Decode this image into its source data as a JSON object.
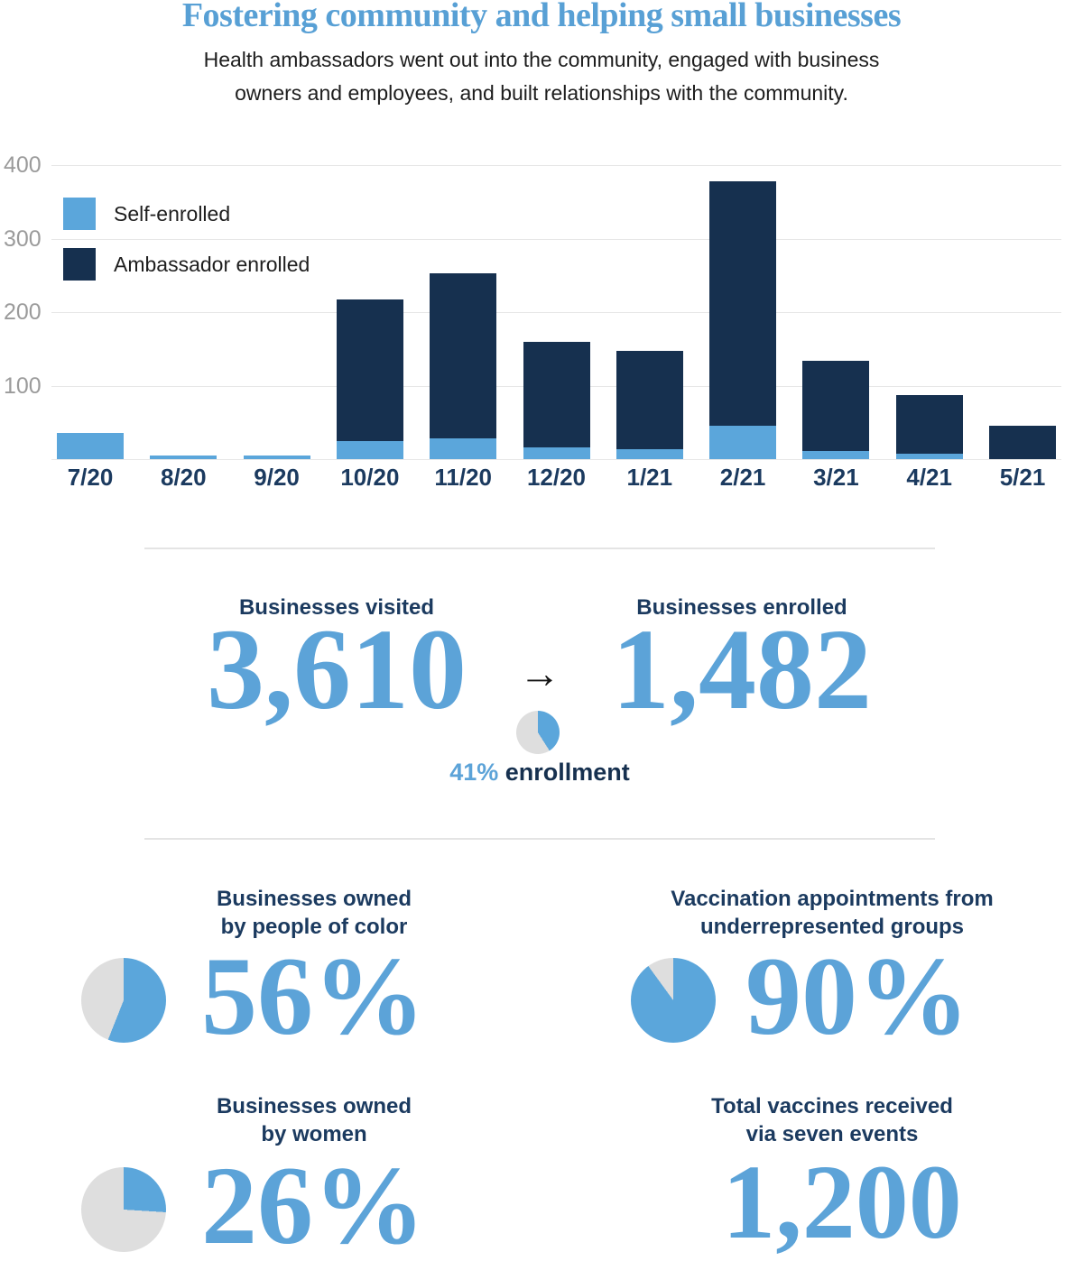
{
  "title": "Fostering community and helping small businesses",
  "subtitle_line1": "Health ambassadors went out into the community, engaged with business",
  "subtitle_line2": "owners and employees, and built relationships with the community.",
  "colors": {
    "light_blue": "#5BA6DB",
    "navy": "#16304F",
    "heading_navy": "#1B3A5F",
    "number_blue": "#5CA3D8",
    "title_blue": "#58A0D5",
    "pie_grey": "#DEDEDE",
    "grid": "#E7E7E7",
    "tick_grey": "#9B9B9B",
    "text_dark": "#1D1D1D"
  },
  "chart_data": {
    "type": "bar",
    "stacked": true,
    "categories": [
      "7/20",
      "8/20",
      "9/20",
      "10/20",
      "11/20",
      "12/20",
      "1/21",
      "2/21",
      "3/21",
      "4/21",
      "5/21"
    ],
    "series": [
      {
        "name": "Self-enrolled",
        "color_key": "light_blue",
        "values": [
          35,
          5,
          5,
          25,
          28,
          16,
          13,
          45,
          11,
          7,
          0
        ]
      },
      {
        "name": "Ambassador enrolled",
        "color_key": "navy",
        "values": [
          0,
          0,
          0,
          193,
          225,
          144,
          134,
          333,
          123,
          80,
          46
        ]
      }
    ],
    "totals": [
      35,
      5,
      5,
      218,
      253,
      160,
      147,
      378,
      134,
      87,
      46
    ],
    "ylim": [
      0,
      400
    ],
    "yticks": [
      100,
      200,
      300,
      400
    ],
    "grid": true,
    "legend_position": "top-left"
  },
  "stats": {
    "visited": {
      "label": "Businesses visited",
      "value": "3,610"
    },
    "enrolled": {
      "label": "Businesses enrolled",
      "value": "1,482"
    },
    "arrow": "→",
    "enrollment_rate": {
      "percent": "41%",
      "label": "enrollment",
      "pie_percent": 41
    }
  },
  "metrics": [
    {
      "label_line1": "Businesses owned",
      "label_line2": "by people of color",
      "value": "56%",
      "pie_percent": 56
    },
    {
      "label_line1": "Vaccination appointments from",
      "label_line2": "underrepresented groups",
      "value": "90%",
      "pie_percent": 90
    },
    {
      "label_line1": "Businesses owned",
      "label_line2": "by women",
      "value": "26%",
      "pie_percent": 26
    },
    {
      "label_line1": "Total vaccines received",
      "label_line2": "via seven events",
      "value": "1,200",
      "pie_percent": null
    }
  ]
}
